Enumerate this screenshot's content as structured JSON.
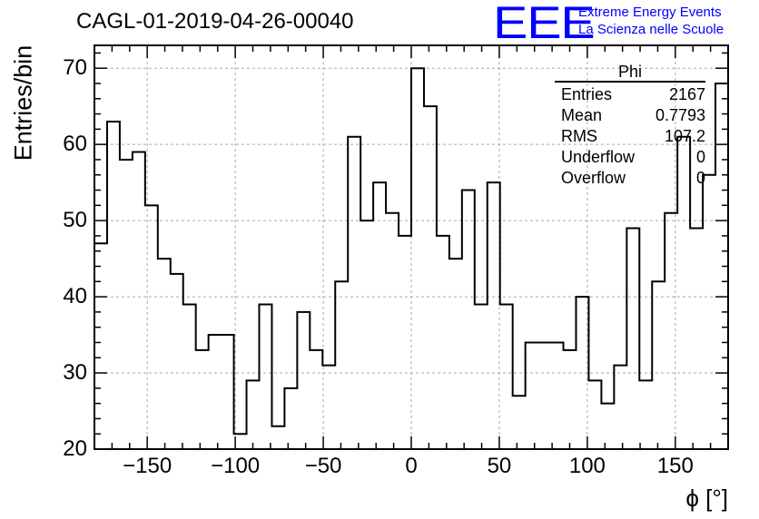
{
  "header": {
    "run_title": "CAGL-01-2019-04-26-00040",
    "logo_text": "EEE",
    "logo_line1": "Extreme Energy Events",
    "logo_line2": "La Scienza nelle Scuole"
  },
  "stats": {
    "name": "Phi",
    "rows": [
      {
        "label": "Entries",
        "value": "2167"
      },
      {
        "label": "Mean",
        "value": "0.7793"
      },
      {
        "label": "RMS",
        "value": "107.2"
      },
      {
        "label": "Underflow",
        "value": "0"
      },
      {
        "label": "Overflow",
        "value": "0"
      }
    ]
  },
  "chart_data": {
    "type": "bar",
    "title": "CAGL-01-2019-04-26-00040",
    "xlabel": "ϕ [°]",
    "ylabel": "Entries/bin",
    "xlim": [
      -180,
      180
    ],
    "ylim": [
      20,
      73
    ],
    "bin_width": 7.2,
    "x_ticks": [
      -150,
      -100,
      -50,
      0,
      50,
      100,
      150
    ],
    "x_tick_labels": [
      "−150",
      "−100",
      "−50",
      "0",
      "50",
      "100",
      "150"
    ],
    "y_ticks": [
      20,
      30,
      40,
      50,
      60,
      70
    ],
    "y_tick_labels": [
      "20",
      "30",
      "40",
      "50",
      "60",
      "70"
    ],
    "grid": true,
    "line_color": "#000000",
    "values": [
      47,
      63,
      58,
      59,
      52,
      45,
      43,
      39,
      33,
      35,
      35,
      22,
      29,
      39,
      23,
      28,
      38,
      33,
      31,
      42,
      61,
      50,
      55,
      51,
      48,
      70,
      65,
      48,
      45,
      54,
      39,
      55,
      39,
      27,
      34,
      34,
      34,
      33,
      40,
      29,
      26,
      31,
      49,
      29,
      42,
      51,
      61,
      49,
      56,
      68
    ]
  }
}
